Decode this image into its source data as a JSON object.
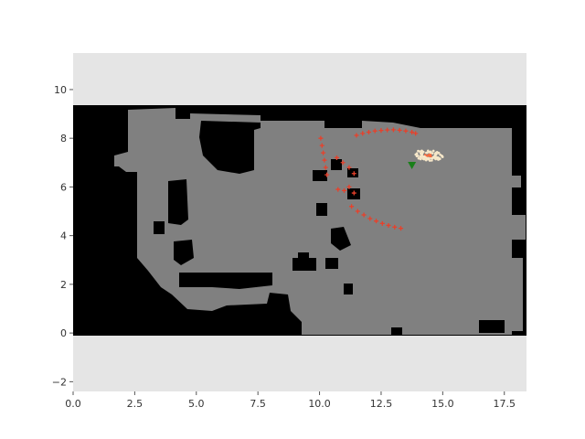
{
  "chart_data": {
    "type": "scatter",
    "title": "",
    "xlabel": "",
    "ylabel": "",
    "xlim": [
      0,
      18.4
    ],
    "ylim": [
      -2.4,
      11.5
    ],
    "x_ticks": [
      0.0,
      2.5,
      5.0,
      7.5,
      10.0,
      12.5,
      15.0,
      17.5
    ],
    "x_tick_labels": [
      "0.0",
      "2.5",
      "5.0",
      "7.5",
      "10.0",
      "12.5",
      "15.0",
      "17.5"
    ],
    "y_ticks": [
      -2,
      0,
      2,
      4,
      6,
      8,
      10
    ],
    "y_tick_labels": [
      "−2",
      "0",
      "2",
      "4",
      "6",
      "8",
      "10"
    ],
    "grid": false,
    "legend": "none",
    "map_extent": {
      "x": [
        0,
        18.4
      ],
      "y": [
        0,
        9.35
      ]
    },
    "colors": {
      "axes_background": "#e5e5e5",
      "occupied": "#000000",
      "free": "#808080",
      "laser_scan": "#e8402a",
      "particles": "#f6e7c9",
      "particle_core": "#ff6b3d",
      "robot_pose": "#1a7f1a"
    },
    "robot_pose": {
      "x": 13.75,
      "y": 6.9
    },
    "particle_cloud": {
      "center_x": 14.4,
      "center_y": 7.3,
      "spread_x": 0.6,
      "spread_y": 0.22
    },
    "laser_points": [
      {
        "x": 11.5,
        "y": 8.12
      },
      {
        "x": 11.75,
        "y": 8.2
      },
      {
        "x": 12.0,
        "y": 8.25
      },
      {
        "x": 12.25,
        "y": 8.3
      },
      {
        "x": 12.5,
        "y": 8.32
      },
      {
        "x": 12.75,
        "y": 8.34
      },
      {
        "x": 13.0,
        "y": 8.35
      },
      {
        "x": 13.25,
        "y": 8.33
      },
      {
        "x": 13.5,
        "y": 8.3
      },
      {
        "x": 13.75,
        "y": 8.25
      },
      {
        "x": 13.9,
        "y": 8.2
      },
      {
        "x": 10.05,
        "y": 8.0
      },
      {
        "x": 10.1,
        "y": 7.7
      },
      {
        "x": 10.15,
        "y": 7.4
      },
      {
        "x": 10.2,
        "y": 7.1
      },
      {
        "x": 10.25,
        "y": 6.8
      },
      {
        "x": 10.3,
        "y": 6.5
      },
      {
        "x": 10.7,
        "y": 7.2
      },
      {
        "x": 10.95,
        "y": 7.0
      },
      {
        "x": 11.2,
        "y": 6.8
      },
      {
        "x": 11.4,
        "y": 6.55
      },
      {
        "x": 10.75,
        "y": 5.9
      },
      {
        "x": 11.0,
        "y": 5.85
      },
      {
        "x": 11.2,
        "y": 6.0
      },
      {
        "x": 11.4,
        "y": 5.75
      },
      {
        "x": 11.3,
        "y": 5.2
      },
      {
        "x": 11.55,
        "y": 5.0
      },
      {
        "x": 11.8,
        "y": 4.85
      },
      {
        "x": 12.05,
        "y": 4.7
      },
      {
        "x": 12.3,
        "y": 4.6
      },
      {
        "x": 12.55,
        "y": 4.5
      },
      {
        "x": 12.8,
        "y": 4.42
      },
      {
        "x": 13.05,
        "y": 4.35
      },
      {
        "x": 13.3,
        "y": 4.3
      }
    ]
  }
}
